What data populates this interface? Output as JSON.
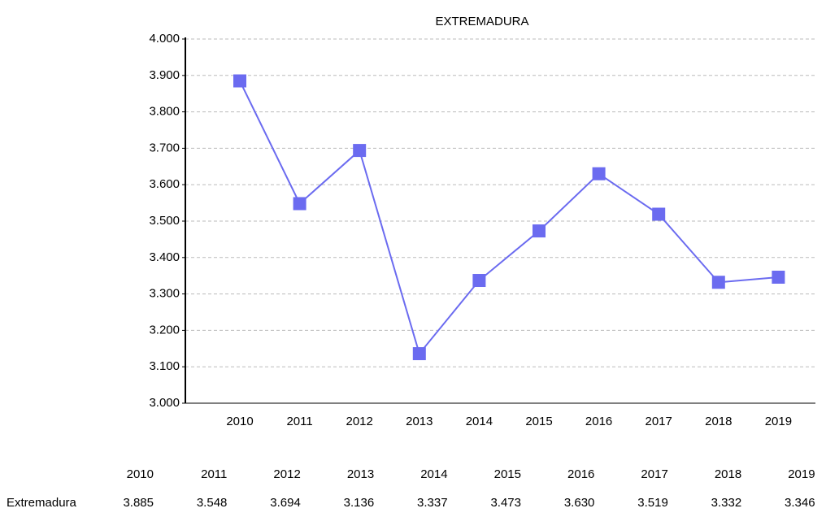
{
  "chart_data": {
    "type": "line",
    "title": "EXTREMADURA",
    "categories": [
      "2010",
      "2011",
      "2012",
      "2013",
      "2014",
      "2015",
      "2016",
      "2017",
      "2018",
      "2019"
    ],
    "series": [
      {
        "name": "Extremadura",
        "color": "#6b6bf0",
        "values": [
          3885,
          3548,
          3694,
          3136,
          3337,
          3473,
          3630,
          3519,
          3332,
          3346
        ],
        "value_labels": [
          "3.885",
          "3.548",
          "3.694",
          "3.136",
          "3.337",
          "3.473",
          "3.630",
          "3.519",
          "3.332",
          "3.346"
        ]
      }
    ],
    "ylim": [
      3000,
      4000
    ],
    "yticks": [
      {
        "value": 3000,
        "label": "3.000"
      },
      {
        "value": 3100,
        "label": "3.100"
      },
      {
        "value": 3200,
        "label": "3.200"
      },
      {
        "value": 3300,
        "label": "3.300"
      },
      {
        "value": 3400,
        "label": "3.400"
      },
      {
        "value": 3500,
        "label": "3.500"
      },
      {
        "value": 3600,
        "label": "3.600"
      },
      {
        "value": 3700,
        "label": "3.700"
      },
      {
        "value": 3800,
        "label": "3.800"
      },
      {
        "value": 3900,
        "label": "3.900"
      },
      {
        "value": 4000,
        "label": "4.000"
      }
    ],
    "grid": true
  }
}
